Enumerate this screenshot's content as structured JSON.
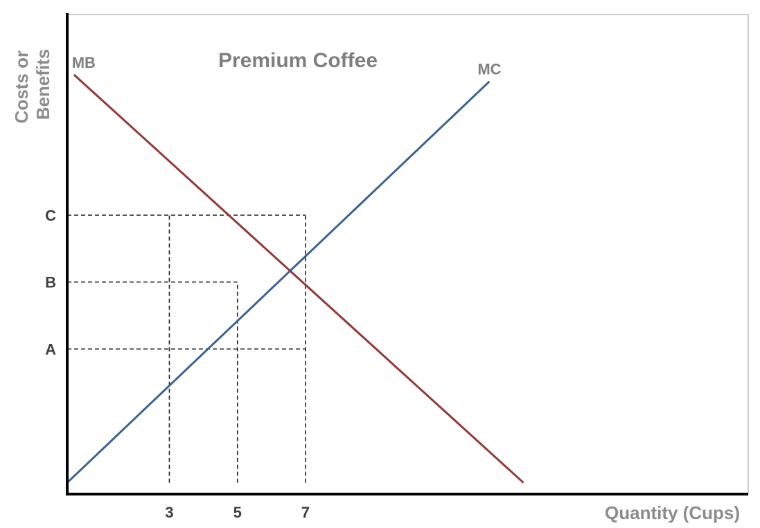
{
  "chart_data": {
    "type": "line",
    "title": "Premium Coffee",
    "xlabel": "Quantity (Cups)",
    "ylabel": "Costs or Benefits",
    "ylabel_lines": [
      "Costs or",
      "Benefits"
    ],
    "x_ticks": [
      {
        "value": 3,
        "label": "3"
      },
      {
        "value": 5,
        "label": "5"
      },
      {
        "value": 7,
        "label": "7"
      }
    ],
    "y_ticks": [
      {
        "key": "A",
        "label": "A",
        "value": 2
      },
      {
        "key": "B",
        "label": "B",
        "value": 3
      },
      {
        "key": "C",
        "label": "C",
        "value": 4
      }
    ],
    "xlim": [
      0,
      20
    ],
    "ylim": [
      -0.17,
      7
    ],
    "series": [
      {
        "name": "MB",
        "color": "#953735",
        "points": [
          [
            0.2,
            6.1
          ],
          [
            13.4,
            0
          ]
        ]
      },
      {
        "name": "MC",
        "color": "#3a6297",
        "points": [
          [
            0,
            0
          ],
          [
            12.4,
            6.0
          ]
        ]
      }
    ],
    "guides": [
      {
        "y": 4,
        "x_from": 0,
        "x_to": 7
      },
      {
        "y": 3,
        "x_from": 0,
        "x_to": 5
      },
      {
        "y": 2,
        "x_from": 0,
        "x_to": 7
      },
      {
        "x": 3,
        "y_from": 0,
        "y_to": 4
      },
      {
        "x": 5,
        "y_from": 0,
        "y_to": 3
      },
      {
        "x": 7,
        "y_from": 0,
        "y_to": 4
      }
    ],
    "grid": false,
    "legend": "none"
  }
}
